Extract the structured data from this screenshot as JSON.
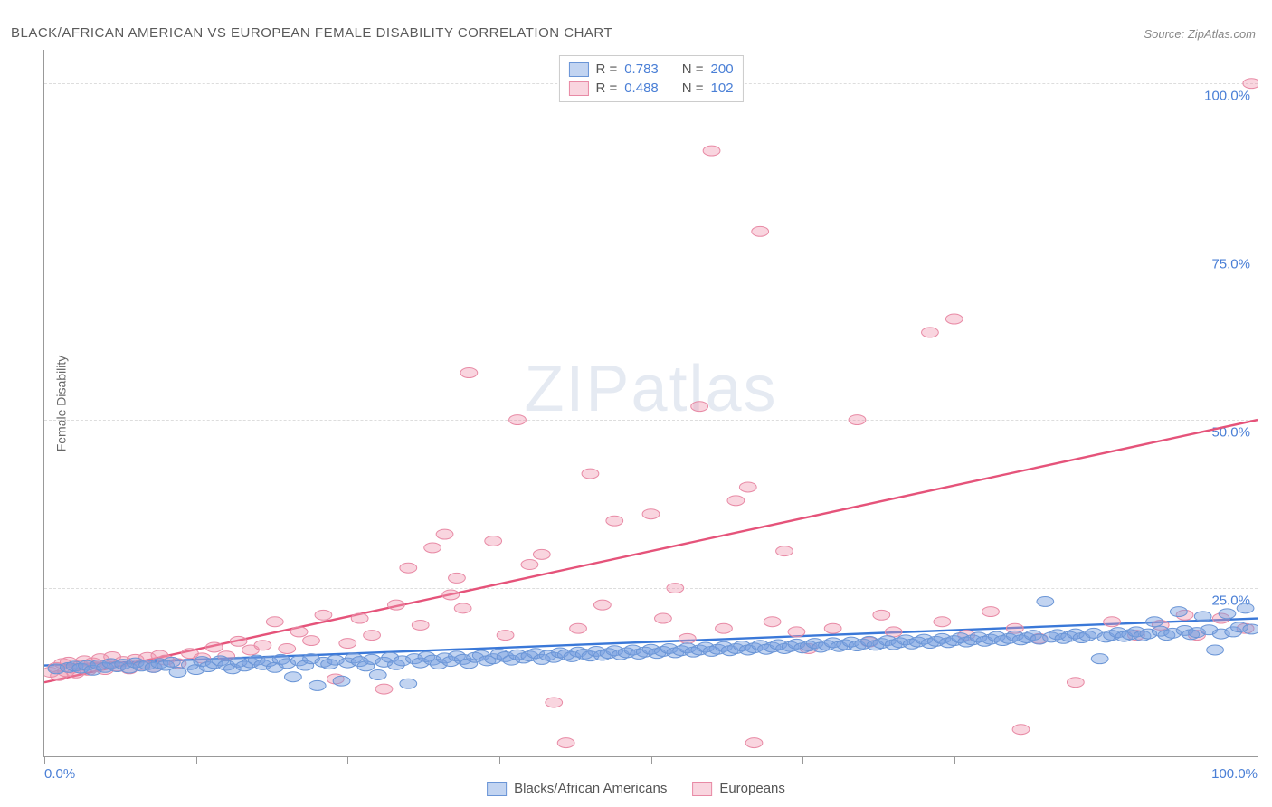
{
  "title": "BLACK/AFRICAN AMERICAN VS EUROPEAN FEMALE DISABILITY CORRELATION CHART",
  "source": "Source: ZipAtlas.com",
  "y_axis_label": "Female Disability",
  "watermark": {
    "bold": "ZIP",
    "light": "atlas"
  },
  "chart": {
    "type": "scatter",
    "xlim": [
      0,
      100
    ],
    "ylim": [
      0,
      105
    ],
    "x_ticks": [
      0,
      12.5,
      25,
      37.5,
      50,
      62.5,
      75,
      87.5,
      100
    ],
    "x_tick_labels": {
      "0": "0.0%",
      "100": "100.0%"
    },
    "y_grid": [
      25,
      50,
      75,
      100
    ],
    "y_tick_labels": {
      "25": "25.0%",
      "50": "50.0%",
      "75": "75.0%",
      "100": "100.0%"
    },
    "background_color": "#ffffff",
    "grid_color": "#dddddd",
    "axis_color": "#999999",
    "series": [
      {
        "id": "blacks",
        "label": "Blacks/African Americans",
        "color_fill": "rgba(120,160,225,0.45)",
        "color_stroke": "#6a95d6",
        "marker_radius": 7,
        "line_color": "#3a78d8",
        "line_width": 2,
        "R": "0.783",
        "N": "200",
        "trend": {
          "x1": 0,
          "y1": 13.5,
          "x2": 100,
          "y2": 20.5
        },
        "points": [
          [
            1,
            13
          ],
          [
            2,
            13.2
          ],
          [
            2.5,
            13.4
          ],
          [
            3,
            13.1
          ],
          [
            3.5,
            13.5
          ],
          [
            4,
            12.8
          ],
          [
            4.5,
            13.6
          ],
          [
            5,
            13.2
          ],
          [
            5.5,
            13.8
          ],
          [
            6,
            13.3
          ],
          [
            6.5,
            13.7
          ],
          [
            7,
            13.1
          ],
          [
            7.5,
            13.9
          ],
          [
            8,
            13.4
          ],
          [
            8.5,
            13.6
          ],
          [
            9,
            13.2
          ],
          [
            9.5,
            13.8
          ],
          [
            10,
            13.5
          ],
          [
            10.5,
            14.0
          ],
          [
            11,
            12.5
          ],
          [
            12,
            13.6
          ],
          [
            12.5,
            12.9
          ],
          [
            13,
            14.1
          ],
          [
            13.5,
            13.3
          ],
          [
            14,
            13.8
          ],
          [
            14.5,
            14.2
          ],
          [
            15,
            13.5
          ],
          [
            15.5,
            13.0
          ],
          [
            16,
            14.0
          ],
          [
            16.5,
            13.4
          ],
          [
            17,
            13.9
          ],
          [
            17.5,
            14.3
          ],
          [
            18,
            13.6
          ],
          [
            18.5,
            14.1
          ],
          [
            19,
            13.2
          ],
          [
            19.5,
            14.4
          ],
          [
            20,
            13.8
          ],
          [
            20.5,
            11.8
          ],
          [
            21,
            14.2
          ],
          [
            21.5,
            13.5
          ],
          [
            22,
            14.5
          ],
          [
            22.5,
            10.5
          ],
          [
            23,
            14.0
          ],
          [
            23.5,
            13.7
          ],
          [
            24,
            14.3
          ],
          [
            24.5,
            11.2
          ],
          [
            25,
            13.9
          ],
          [
            25.5,
            14.6
          ],
          [
            26,
            14.1
          ],
          [
            26.5,
            13.4
          ],
          [
            27,
            14.4
          ],
          [
            27.5,
            12.1
          ],
          [
            28,
            14.0
          ],
          [
            28.5,
            14.7
          ],
          [
            29,
            13.6
          ],
          [
            29.5,
            14.2
          ],
          [
            30,
            10.8
          ],
          [
            30.5,
            14.5
          ],
          [
            31,
            13.9
          ],
          [
            31.5,
            14.8
          ],
          [
            32,
            14.3
          ],
          [
            32.5,
            13.7
          ],
          [
            33,
            14.6
          ],
          [
            33.5,
            14.1
          ],
          [
            34,
            14.9
          ],
          [
            34.5,
            14.4
          ],
          [
            35,
            13.8
          ],
          [
            35.5,
            14.7
          ],
          [
            36,
            15.0
          ],
          [
            36.5,
            14.2
          ],
          [
            37,
            14.5
          ],
          [
            37.5,
            15.2
          ],
          [
            38,
            14.8
          ],
          [
            38.5,
            14.3
          ],
          [
            39,
            15.1
          ],
          [
            39.5,
            14.6
          ],
          [
            40,
            14.9
          ],
          [
            40.5,
            15.3
          ],
          [
            41,
            14.4
          ],
          [
            41.5,
            15.0
          ],
          [
            42,
            14.7
          ],
          [
            42.5,
            15.4
          ],
          [
            43,
            15.1
          ],
          [
            43.5,
            14.8
          ],
          [
            44,
            15.5
          ],
          [
            44.5,
            15.2
          ],
          [
            45,
            14.9
          ],
          [
            45.5,
            15.6
          ],
          [
            46,
            15.0
          ],
          [
            46.5,
            15.3
          ],
          [
            47,
            15.7
          ],
          [
            47.5,
            15.1
          ],
          [
            48,
            15.4
          ],
          [
            48.5,
            15.8
          ],
          [
            49,
            15.2
          ],
          [
            49.5,
            15.5
          ],
          [
            50,
            15.9
          ],
          [
            50.5,
            15.3
          ],
          [
            51,
            15.6
          ],
          [
            51.5,
            16.0
          ],
          [
            52,
            15.4
          ],
          [
            52.5,
            15.7
          ],
          [
            53,
            16.1
          ],
          [
            53.5,
            15.5
          ],
          [
            54,
            15.8
          ],
          [
            54.5,
            16.2
          ],
          [
            55,
            15.6
          ],
          [
            55.5,
            15.9
          ],
          [
            56,
            16.3
          ],
          [
            56.5,
            15.7
          ],
          [
            57,
            16.0
          ],
          [
            57.5,
            16.4
          ],
          [
            58,
            15.8
          ],
          [
            58.5,
            16.1
          ],
          [
            59,
            16.5
          ],
          [
            59.5,
            15.9
          ],
          [
            60,
            16.2
          ],
          [
            60.5,
            16.6
          ],
          [
            61,
            16.0
          ],
          [
            61.5,
            16.3
          ],
          [
            62,
            16.7
          ],
          [
            62.5,
            16.1
          ],
          [
            63,
            16.4
          ],
          [
            63.5,
            16.8
          ],
          [
            64,
            16.2
          ],
          [
            64.5,
            16.5
          ],
          [
            65,
            16.9
          ],
          [
            65.5,
            16.3
          ],
          [
            66,
            16.6
          ],
          [
            66.5,
            17.0
          ],
          [
            67,
            16.4
          ],
          [
            67.5,
            16.7
          ],
          [
            68,
            17.1
          ],
          [
            68.5,
            16.5
          ],
          [
            69,
            16.8
          ],
          [
            69.5,
            17.2
          ],
          [
            70,
            16.6
          ],
          [
            70.5,
            16.9
          ],
          [
            71,
            17.3
          ],
          [
            71.5,
            16.7
          ],
          [
            72,
            17.0
          ],
          [
            72.5,
            17.4
          ],
          [
            73,
            16.8
          ],
          [
            73.5,
            17.1
          ],
          [
            74,
            17.5
          ],
          [
            74.5,
            16.9
          ],
          [
            75,
            17.2
          ],
          [
            75.5,
            17.6
          ],
          [
            76,
            17.0
          ],
          [
            76.5,
            17.3
          ],
          [
            77,
            17.7
          ],
          [
            77.5,
            17.1
          ],
          [
            78,
            17.4
          ],
          [
            78.5,
            17.8
          ],
          [
            79,
            17.2
          ],
          [
            79.5,
            17.5
          ],
          [
            80,
            17.9
          ],
          [
            80.5,
            17.3
          ],
          [
            81,
            17.6
          ],
          [
            81.5,
            18.0
          ],
          [
            82,
            17.4
          ],
          [
            82.5,
            23.0
          ],
          [
            83,
            17.7
          ],
          [
            83.5,
            18.1
          ],
          [
            84,
            17.5
          ],
          [
            84.5,
            17.8
          ],
          [
            85,
            18.2
          ],
          [
            85.5,
            17.6
          ],
          [
            86,
            17.9
          ],
          [
            86.5,
            18.3
          ],
          [
            87,
            14.5
          ],
          [
            87.5,
            17.7
          ],
          [
            88,
            18.0
          ],
          [
            88.5,
            18.4
          ],
          [
            89,
            17.8
          ],
          [
            89.5,
            18.1
          ],
          [
            90,
            18.5
          ],
          [
            90.5,
            17.9
          ],
          [
            91,
            18.2
          ],
          [
            91.5,
            20.0
          ],
          [
            92,
            18.6
          ],
          [
            92.5,
            18.0
          ],
          [
            93,
            18.3
          ],
          [
            93.5,
            21.5
          ],
          [
            94,
            18.7
          ],
          [
            94.5,
            18.1
          ],
          [
            95,
            18.4
          ],
          [
            95.5,
            20.8
          ],
          [
            96,
            18.8
          ],
          [
            96.5,
            15.8
          ],
          [
            97,
            18.2
          ],
          [
            97.5,
            21.2
          ],
          [
            98,
            18.5
          ],
          [
            98.5,
            19.2
          ],
          [
            99,
            22.0
          ],
          [
            99.5,
            18.9
          ]
        ]
      },
      {
        "id": "europeans",
        "label": "Europeans",
        "color_fill": "rgba(240,150,175,0.40)",
        "color_stroke": "#e88aa5",
        "marker_radius": 7,
        "line_color": "#e5537a",
        "line_width": 2,
        "R": "0.488",
        "N": "102",
        "trend": {
          "x1": 0,
          "y1": 11,
          "x2": 100,
          "y2": 50
        },
        "points": [
          [
            0.5,
            12.5
          ],
          [
            1,
            13.2
          ],
          [
            1.2,
            12.0
          ],
          [
            1.5,
            13.8
          ],
          [
            1.8,
            12.6
          ],
          [
            2,
            14.0
          ],
          [
            2.3,
            13.1
          ],
          [
            2.6,
            12.4
          ],
          [
            3,
            13.5
          ],
          [
            3.3,
            14.2
          ],
          [
            3.6,
            12.8
          ],
          [
            4,
            13.9
          ],
          [
            4.3,
            13.3
          ],
          [
            4.6,
            14.5
          ],
          [
            5,
            12.9
          ],
          [
            5.3,
            13.7
          ],
          [
            5.6,
            14.8
          ],
          [
            6,
            13.4
          ],
          [
            6.5,
            14.1
          ],
          [
            7,
            13.0
          ],
          [
            7.5,
            14.4
          ],
          [
            8,
            13.6
          ],
          [
            8.5,
            14.7
          ],
          [
            9,
            13.2
          ],
          [
            9.5,
            15.0
          ],
          [
            10,
            14.3
          ],
          [
            11,
            13.8
          ],
          [
            12,
            15.3
          ],
          [
            13,
            14.6
          ],
          [
            14,
            16.2
          ],
          [
            15,
            14.9
          ],
          [
            16,
            17.1
          ],
          [
            17,
            15.8
          ],
          [
            18,
            16.5
          ],
          [
            19,
            20.0
          ],
          [
            20,
            16.0
          ],
          [
            21,
            18.5
          ],
          [
            22,
            17.2
          ],
          [
            23,
            21.0
          ],
          [
            24,
            11.5
          ],
          [
            25,
            16.8
          ],
          [
            26,
            20.5
          ],
          [
            27,
            18.0
          ],
          [
            28,
            10.0
          ],
          [
            29,
            22.5
          ],
          [
            30,
            28.0
          ],
          [
            31,
            19.5
          ],
          [
            32,
            31.0
          ],
          [
            33,
            33.0
          ],
          [
            33.5,
            24.0
          ],
          [
            34,
            26.5
          ],
          [
            34.5,
            22.0
          ],
          [
            35,
            57.0
          ],
          [
            37,
            32.0
          ],
          [
            38,
            18.0
          ],
          [
            39,
            50.0
          ],
          [
            40,
            28.5
          ],
          [
            41,
            30.0
          ],
          [
            42,
            8.0
          ],
          [
            43,
            2.0
          ],
          [
            44,
            19.0
          ],
          [
            45,
            42.0
          ],
          [
            46,
            22.5
          ],
          [
            47,
            35.0
          ],
          [
            50,
            36.0
          ],
          [
            51,
            20.5
          ],
          [
            52,
            25.0
          ],
          [
            53,
            17.5
          ],
          [
            54,
            52.0
          ],
          [
            55,
            90.0
          ],
          [
            56,
            19.0
          ],
          [
            57,
            38.0
          ],
          [
            58,
            40.0
          ],
          [
            58.5,
            2.0
          ],
          [
            59,
            78.0
          ],
          [
            60,
            20.0
          ],
          [
            61,
            30.5
          ],
          [
            62,
            18.5
          ],
          [
            63,
            16.0
          ],
          [
            65,
            19.0
          ],
          [
            67,
            50.0
          ],
          [
            68,
            17.0
          ],
          [
            69,
            21.0
          ],
          [
            70,
            18.5
          ],
          [
            73,
            63.0
          ],
          [
            74,
            20.0
          ],
          [
            75,
            65.0
          ],
          [
            76,
            18.0
          ],
          [
            78,
            21.5
          ],
          [
            80,
            19.0
          ],
          [
            80.5,
            4.0
          ],
          [
            82,
            17.5
          ],
          [
            85,
            11.0
          ],
          [
            88,
            20.0
          ],
          [
            90,
            18.0
          ],
          [
            92,
            19.5
          ],
          [
            94,
            21.0
          ],
          [
            95,
            18.0
          ],
          [
            97,
            20.5
          ],
          [
            99,
            19.0
          ],
          [
            99.5,
            100.0
          ]
        ]
      }
    ]
  },
  "legend_top": {
    "R_label": "R =",
    "N_label": "N ="
  },
  "colors": {
    "tick_label": "#4a7fd6",
    "title": "#5a5a5a",
    "source": "#888888"
  }
}
